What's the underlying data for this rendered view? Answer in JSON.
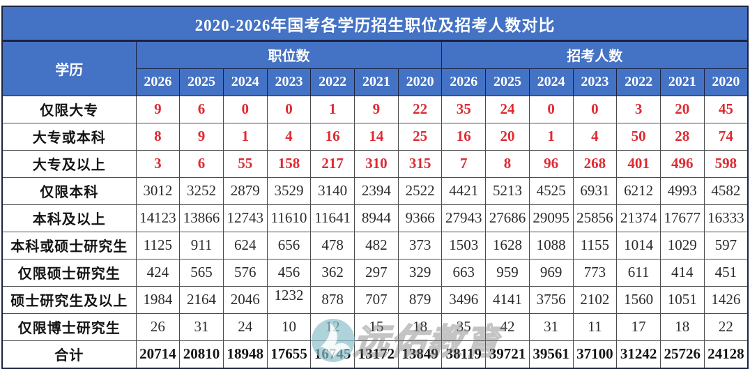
{
  "title": "2020-2026年国考各学历招生职位及招考人数对比",
  "watermark": {
    "text": "远佑教育",
    "logo": "swan-circle-logo"
  },
  "colors": {
    "header_blue": "#4472c4",
    "header_border": "#1a2342",
    "grid_line": "#4c4c4c",
    "accent_red": "#e02a33",
    "body_text": "#2b2b2b",
    "watermark_teal": "#8abec9"
  },
  "chart_data": {
    "type": "table",
    "title": "2020-2026年国考各学历招生职位及招考人数对比",
    "corner_header": "学历",
    "column_groups": [
      "职位数",
      "招考人数"
    ],
    "years": [
      "2026",
      "2025",
      "2024",
      "2023",
      "2022",
      "2021",
      "2020"
    ],
    "rows": [
      {
        "label": "仅限大专",
        "emphasis": "red",
        "positions": [
          9,
          6,
          0,
          0,
          1,
          9,
          22
        ],
        "recruits": [
          35,
          24,
          0,
          0,
          3,
          20,
          45
        ]
      },
      {
        "label": "大专或本科",
        "emphasis": "red",
        "positions": [
          8,
          9,
          1,
          4,
          16,
          14,
          25
        ],
        "recruits": [
          16,
          20,
          1,
          4,
          50,
          28,
          74
        ]
      },
      {
        "label": "大专及以上",
        "emphasis": "red",
        "positions": [
          3,
          6,
          55,
          158,
          217,
          310,
          315
        ],
        "recruits": [
          7,
          8,
          96,
          268,
          401,
          496,
          598
        ]
      },
      {
        "label": "仅限本科",
        "emphasis": "none",
        "positions": [
          3012,
          3252,
          2879,
          3529,
          3140,
          2394,
          2522
        ],
        "recruits": [
          4421,
          5213,
          4525,
          6931,
          6212,
          4993,
          4582
        ]
      },
      {
        "label": "本科及以上",
        "emphasis": "none",
        "positions": [
          14123,
          13866,
          12743,
          11610,
          11641,
          8944,
          9366
        ],
        "recruits": [
          27943,
          27686,
          29095,
          25856,
          21374,
          17677,
          16333
        ]
      },
      {
        "label": "本科或硕士研究生",
        "emphasis": "none",
        "positions": [
          1125,
          911,
          624,
          656,
          478,
          482,
          373
        ],
        "recruits": [
          1503,
          1628,
          1088,
          1155,
          1014,
          1029,
          597
        ]
      },
      {
        "label": "仅限硕士研究生",
        "emphasis": "none",
        "positions": [
          424,
          565,
          576,
          456,
          362,
          297,
          329
        ],
        "recruits": [
          663,
          959,
          969,
          773,
          611,
          414,
          451
        ]
      },
      {
        "label": "硕士研究生及以上",
        "emphasis": "none",
        "positions": [
          1984,
          2164,
          2046,
          1232,
          878,
          707,
          879
        ],
        "recruits": [
          3496,
          4141,
          3756,
          2102,
          1560,
          1051,
          1426
        ]
      },
      {
        "label": "仅限博士研究生",
        "emphasis": "none",
        "positions": [
          26,
          31,
          24,
          10,
          12,
          15,
          18
        ],
        "recruits": [
          35,
          42,
          31,
          11,
          17,
          18,
          22
        ]
      }
    ],
    "total_row": {
      "label": "合计",
      "positions": [
        20714,
        20810,
        18948,
        17655,
        16745,
        13172,
        13849
      ],
      "recruits": [
        38119,
        39721,
        39561,
        37100,
        31242,
        25726,
        24128
      ]
    }
  }
}
